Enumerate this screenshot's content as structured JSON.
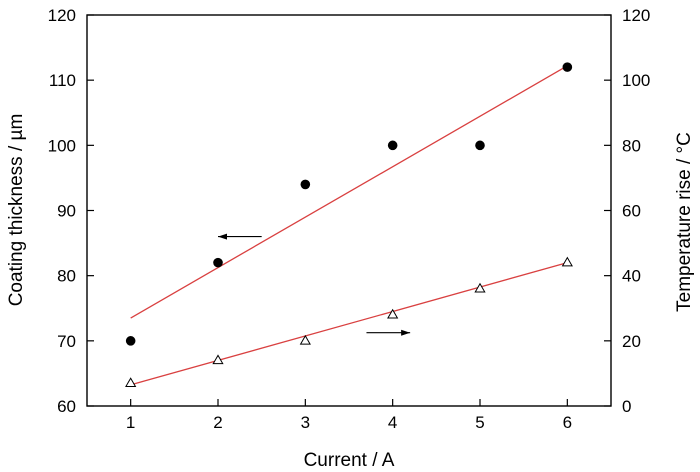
{
  "chart_data": {
    "type": "scatter",
    "title": "",
    "xlabel": "Current / A",
    "ylabel_left": "Coating thickness / µm",
    "ylabel_right": "Temperature rise / °C",
    "xlim": [
      0.5,
      6.5
    ],
    "ylim_left": [
      60,
      120
    ],
    "ylim_right": [
      0,
      120
    ],
    "x_ticks": [
      1,
      2,
      3,
      4,
      5,
      6
    ],
    "y_ticks_left": [
      60,
      70,
      80,
      90,
      100,
      110,
      120
    ],
    "y_ticks_right": [
      0,
      20,
      40,
      60,
      80,
      100,
      120
    ],
    "grid": false,
    "series": [
      {
        "axis": "left",
        "marker": "filled-circle",
        "x": [
          1,
          2,
          3,
          4,
          5,
          6
        ],
        "y": [
          70,
          82,
          94,
          100,
          100,
          112
        ],
        "fit": {
          "x": [
            1,
            6
          ],
          "y": [
            73.5,
            112.2
          ]
        },
        "fit_color": "#d94040",
        "arrow": {
          "direction": "left",
          "x": [
            2.5,
            2.0
          ],
          "y": 86.0
        }
      },
      {
        "axis": "right",
        "marker": "open-triangle",
        "x": [
          1,
          2,
          3,
          4,
          5,
          6
        ],
        "y": [
          7,
          14,
          20,
          28,
          36,
          44
        ],
        "fit": {
          "x": [
            1,
            6
          ],
          "y": [
            6.5,
            44
          ]
        },
        "fit_color": "#d94040",
        "arrow": {
          "direction": "right",
          "x": [
            3.7,
            4.2
          ],
          "y": 22.5
        }
      }
    ]
  }
}
